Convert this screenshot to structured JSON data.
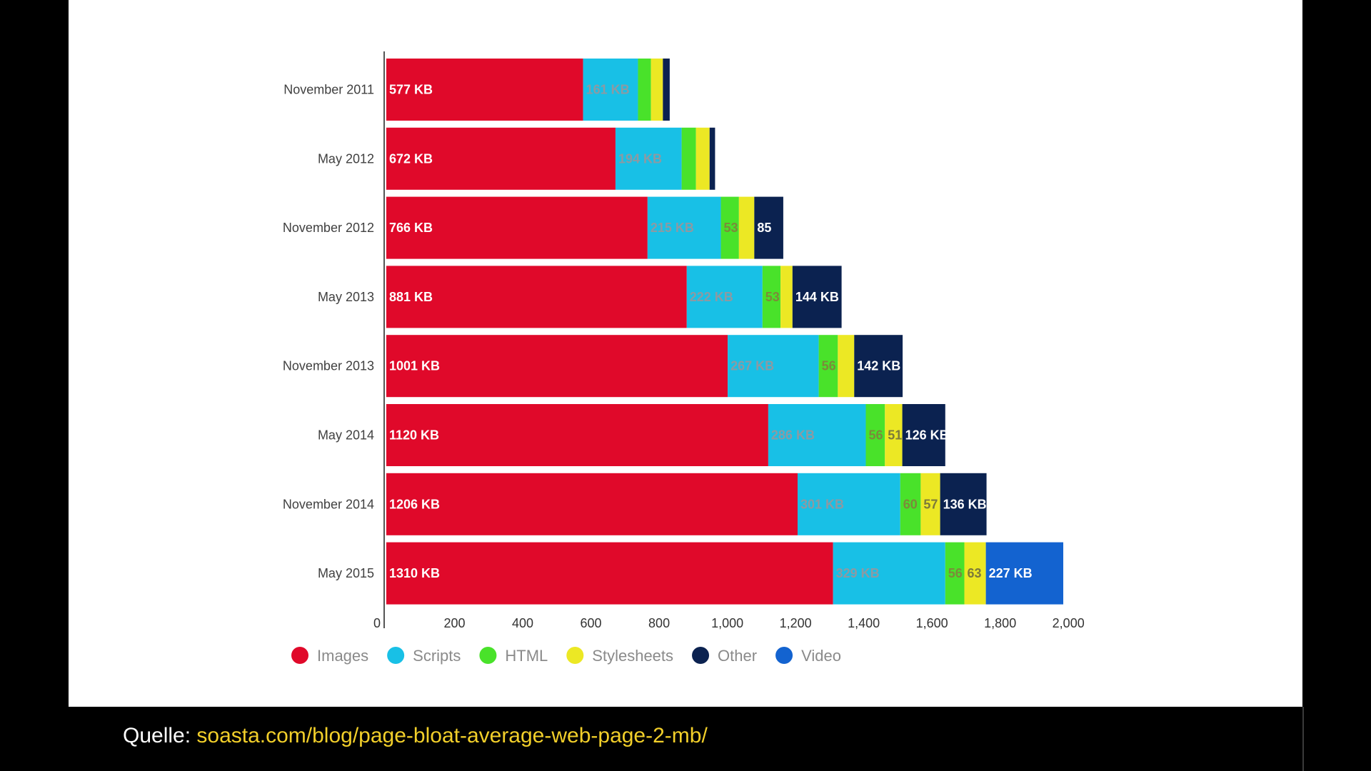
{
  "chart_data": {
    "type": "bar",
    "orientation": "horizontal",
    "stacked": true,
    "title": "",
    "xlabel": "",
    "ylabel": "",
    "xlim": [
      0,
      2000
    ],
    "x_ticks": [
      {
        "value": 0,
        "label": "0"
      },
      {
        "value": 200,
        "label": "200"
      },
      {
        "value": 400,
        "label": "400"
      },
      {
        "value": 600,
        "label": "600"
      },
      {
        "value": 800,
        "label": "800"
      },
      {
        "value": 1000,
        "label": "1,000"
      },
      {
        "value": 1200,
        "label": "1,200"
      },
      {
        "value": 1400,
        "label": "1,400"
      },
      {
        "value": 1600,
        "label": "1,600"
      },
      {
        "value": 1800,
        "label": "1,800"
      },
      {
        "value": 2000,
        "label": "2,000"
      }
    ],
    "grid": false,
    "legend_position": "bottom-left",
    "categories": [
      "November 2011",
      "May 2012",
      "November 2012",
      "May 2013",
      "November 2013",
      "May 2014",
      "November 2014",
      "May 2015"
    ],
    "series": [
      {
        "name": "Images",
        "color": "#e0092a",
        "label_color": "#ffffff",
        "values": [
          577,
          672,
          766,
          881,
          1001,
          1120,
          1206,
          1310
        ],
        "labels": [
          "577 KB",
          "672 KB",
          "766 KB",
          "881 KB",
          "1001 KB",
          "1120 KB",
          "1206 KB",
          "1310 KB"
        ]
      },
      {
        "name": "Scripts",
        "color": "#18c0e6",
        "label_color": "#8c9aa3",
        "values": [
          161,
          194,
          215,
          222,
          267,
          286,
          301,
          329
        ],
        "labels": [
          "161 KB",
          "194 KB",
          "215 KB",
          "222 KB",
          "267 KB",
          "286 KB",
          "301 KB",
          "329 KB"
        ]
      },
      {
        "name": "HTML",
        "color": "#49e22a",
        "label_color": "#7c8a3a",
        "values": [
          38,
          42,
          53,
          53,
          56,
          56,
          60,
          56
        ],
        "labels": [
          "",
          "",
          "53",
          "53",
          "56",
          "56",
          "60",
          "56"
        ]
      },
      {
        "name": "Stylesheets",
        "color": "#ece824",
        "label_color": "#7c7a3a",
        "values": [
          35,
          40,
          45,
          35,
          48,
          51,
          57,
          63
        ],
        "labels": [
          "",
          "",
          "",
          "",
          "",
          "51",
          "57",
          "63"
        ]
      },
      {
        "name": "Other",
        "color": "#0b2250",
        "label_color": "#ffffff",
        "values": [
          20,
          16,
          85,
          144,
          142,
          126,
          136,
          0
        ],
        "labels": [
          "",
          "",
          "85",
          "144 KB",
          "142 KB",
          "126 KB",
          "136 KB",
          ""
        ]
      },
      {
        "name": "Video",
        "color": "#1363d0",
        "label_color": "#ffffff",
        "values": [
          0,
          0,
          0,
          0,
          0,
          0,
          0,
          227
        ],
        "labels": [
          "",
          "",
          "",
          "",
          "",
          "",
          "",
          "227 KB"
        ]
      }
    ]
  },
  "source": {
    "prefix": "Quelle: ",
    "link_text": "soasta.com/blog/page-bloat-average-web-page-2-mb/"
  }
}
